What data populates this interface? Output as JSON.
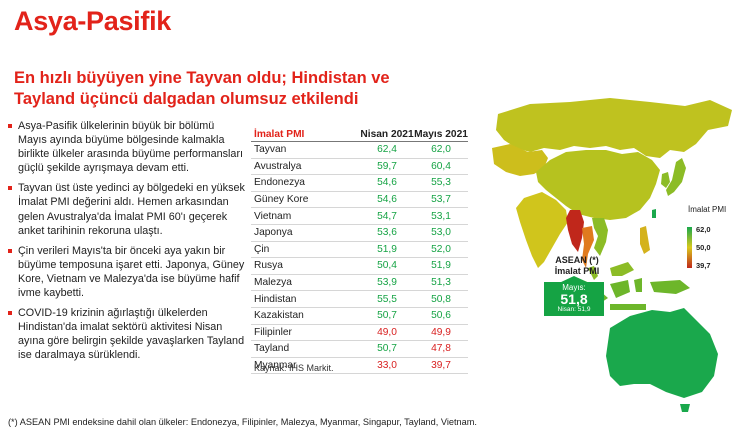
{
  "title": "Asya-Pasifik",
  "subtitle": "En hızlı büyüyen yine Tayvan oldu; Hindistan ve Tayland üçüncü dalgadan olumsuz etkilendi",
  "bullets": [
    "Asya-Pasifik ülkelerinin büyük bir bölümü Mayıs ayında büyüme bölgesinde kalmakla birlikte ülkeler arasında büyüme performansları güçlü şekilde ayrışmaya devam etti.",
    "Tayvan üst üste yedinci ay bölgedeki en yüksek İmalat PMI değerini aldı. Hemen arkasından gelen Avustralya'da İmalat PMI 60'ı geçerek anket tarihinin rekoruna ulaştı.",
    "Çin verileri Mayıs'ta bir önceki aya yakın bir büyüme temposuna işaret etti. Japonya, Güney Kore, Vietnam ve Malezya'da ise büyüme hafif ivme kaybetti.",
    "COVID-19 krizinin ağırlaştığı ülkelerden Hindistan'da imalat sektörü aktivitesi Nisan ayına göre belirgin şekilde yavaşlarken Tayland ise daralmaya sürüklendi."
  ],
  "table": {
    "headers": [
      "İmalat PMI",
      "Nisan 2021",
      "Mayıs 2021"
    ],
    "rows": [
      {
        "country": "Tayvan",
        "apr": "62,4",
        "may": "62,0",
        "apr_c": "g",
        "may_c": "g"
      },
      {
        "country": "Avustralya",
        "apr": "59,7",
        "may": "60,4",
        "apr_c": "g",
        "may_c": "g"
      },
      {
        "country": "Endonezya",
        "apr": "54,6",
        "may": "55,3",
        "apr_c": "g",
        "may_c": "g"
      },
      {
        "country": "Güney Kore",
        "apr": "54,6",
        "may": "53,7",
        "apr_c": "g",
        "may_c": "g"
      },
      {
        "country": "Vietnam",
        "apr": "54,7",
        "may": "53,1",
        "apr_c": "g",
        "may_c": "g"
      },
      {
        "country": "Japonya",
        "apr": "53,6",
        "may": "53,0",
        "apr_c": "g",
        "may_c": "g"
      },
      {
        "country": "Çin",
        "apr": "51,9",
        "may": "52,0",
        "apr_c": "g",
        "may_c": "g"
      },
      {
        "country": "Rusya",
        "apr": "50,4",
        "may": "51,9",
        "apr_c": "g",
        "may_c": "g"
      },
      {
        "country": "Malezya",
        "apr": "53,9",
        "may": "51,3",
        "apr_c": "g",
        "may_c": "g"
      },
      {
        "country": "Hindistan",
        "apr": "55,5",
        "may": "50,8",
        "apr_c": "g",
        "may_c": "g"
      },
      {
        "country": "Kazakistan",
        "apr": "50,7",
        "may": "50,6",
        "apr_c": "g",
        "may_c": "g"
      },
      {
        "country": "Filipinler",
        "apr": "49,0",
        "may": "49,9",
        "apr_c": "r",
        "may_c": "r"
      },
      {
        "country": "Tayland",
        "apr": "50,7",
        "may": "47,8",
        "apr_c": "g",
        "may_c": "r"
      },
      {
        "country": "Myanmar",
        "apr": "33,0",
        "may": "39,7",
        "apr_c": "r",
        "may_c": "r"
      }
    ]
  },
  "source": "Kaynak: IHS Markit.",
  "footnote": "(*) ASEAN PMI endeksine dahil olan ülkeler: Endonezya, Filipinler, Malezya, Myanmar, Singapur, Tayland, Vietnam.",
  "map": {
    "legend_title": "İmalat PMI",
    "legend_max": "62,0",
    "legend_mid": "50,0",
    "legend_min": "39,7",
    "colors": {
      "high": "#1aa84c",
      "mid": "#d9c81c",
      "low": "#c0271b"
    }
  },
  "asean": {
    "label_line1": "ASEAN (*)",
    "label_line2": "İmalat PMI",
    "month_label": "Mayıs:",
    "value": "51,8",
    "april_label": "Nisan: 51,9"
  },
  "colors": {
    "accent": "#e2231a",
    "positive": "#15a344",
    "negative": "#d81e1e"
  }
}
